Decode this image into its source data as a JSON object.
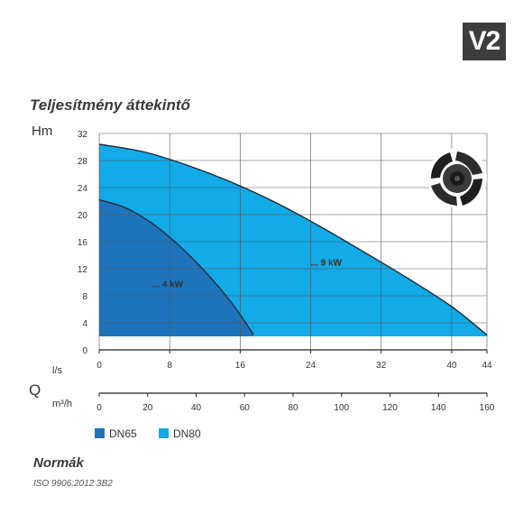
{
  "badge": "V2",
  "title": "Teljesítmény áttekintő",
  "standards": {
    "heading": "Normák",
    "code": "ISO 9906:2012 3B2"
  },
  "colors": {
    "dn65": "#1d74bb",
    "dn80": "#12aae7",
    "grid": "#555555",
    "curve": "#1a2b3c"
  },
  "icon": "impeller-icon",
  "chart_data": {
    "type": "area",
    "ylabel": "Hm",
    "xlabel": "Q",
    "x_unit_primary": "l/s",
    "x_unit_secondary": "m³/h",
    "ylim": [
      0,
      32
    ],
    "xlim": [
      0,
      44
    ],
    "x2lim": [
      0,
      160
    ],
    "yticks": [
      "0",
      "4",
      "8",
      "12",
      "16",
      "20",
      "24",
      "28",
      "32"
    ],
    "xticks": [
      "0",
      "8",
      "16",
      "24",
      "32",
      "40",
      "44"
    ],
    "x2ticks": [
      "0",
      "20",
      "40",
      "60",
      "80",
      "100",
      "120",
      "140",
      "160"
    ],
    "grid": true,
    "series": [
      {
        "name": "DN80",
        "power_label": "... 9 kW",
        "color": "#12aae7",
        "baseline": 2,
        "points": [
          [
            0,
            30.4
          ],
          [
            5,
            29.3
          ],
          [
            10,
            27.3
          ],
          [
            15,
            24.8
          ],
          [
            20,
            21.8
          ],
          [
            25,
            18.3
          ],
          [
            30,
            14.5
          ],
          [
            35,
            10.6
          ],
          [
            40,
            6.4
          ],
          [
            44,
            2.2
          ]
        ]
      },
      {
        "name": "DN65",
        "power_label": "... 4 kW",
        "color": "#1d74bb",
        "baseline": 2,
        "points": [
          [
            0,
            22.2
          ],
          [
            3,
            21.0
          ],
          [
            6,
            18.7
          ],
          [
            9,
            15.5
          ],
          [
            12,
            11.6
          ],
          [
            15,
            7.0
          ],
          [
            17.5,
            2.3
          ]
        ]
      }
    ],
    "legend": [
      "DN65",
      "DN80"
    ]
  }
}
